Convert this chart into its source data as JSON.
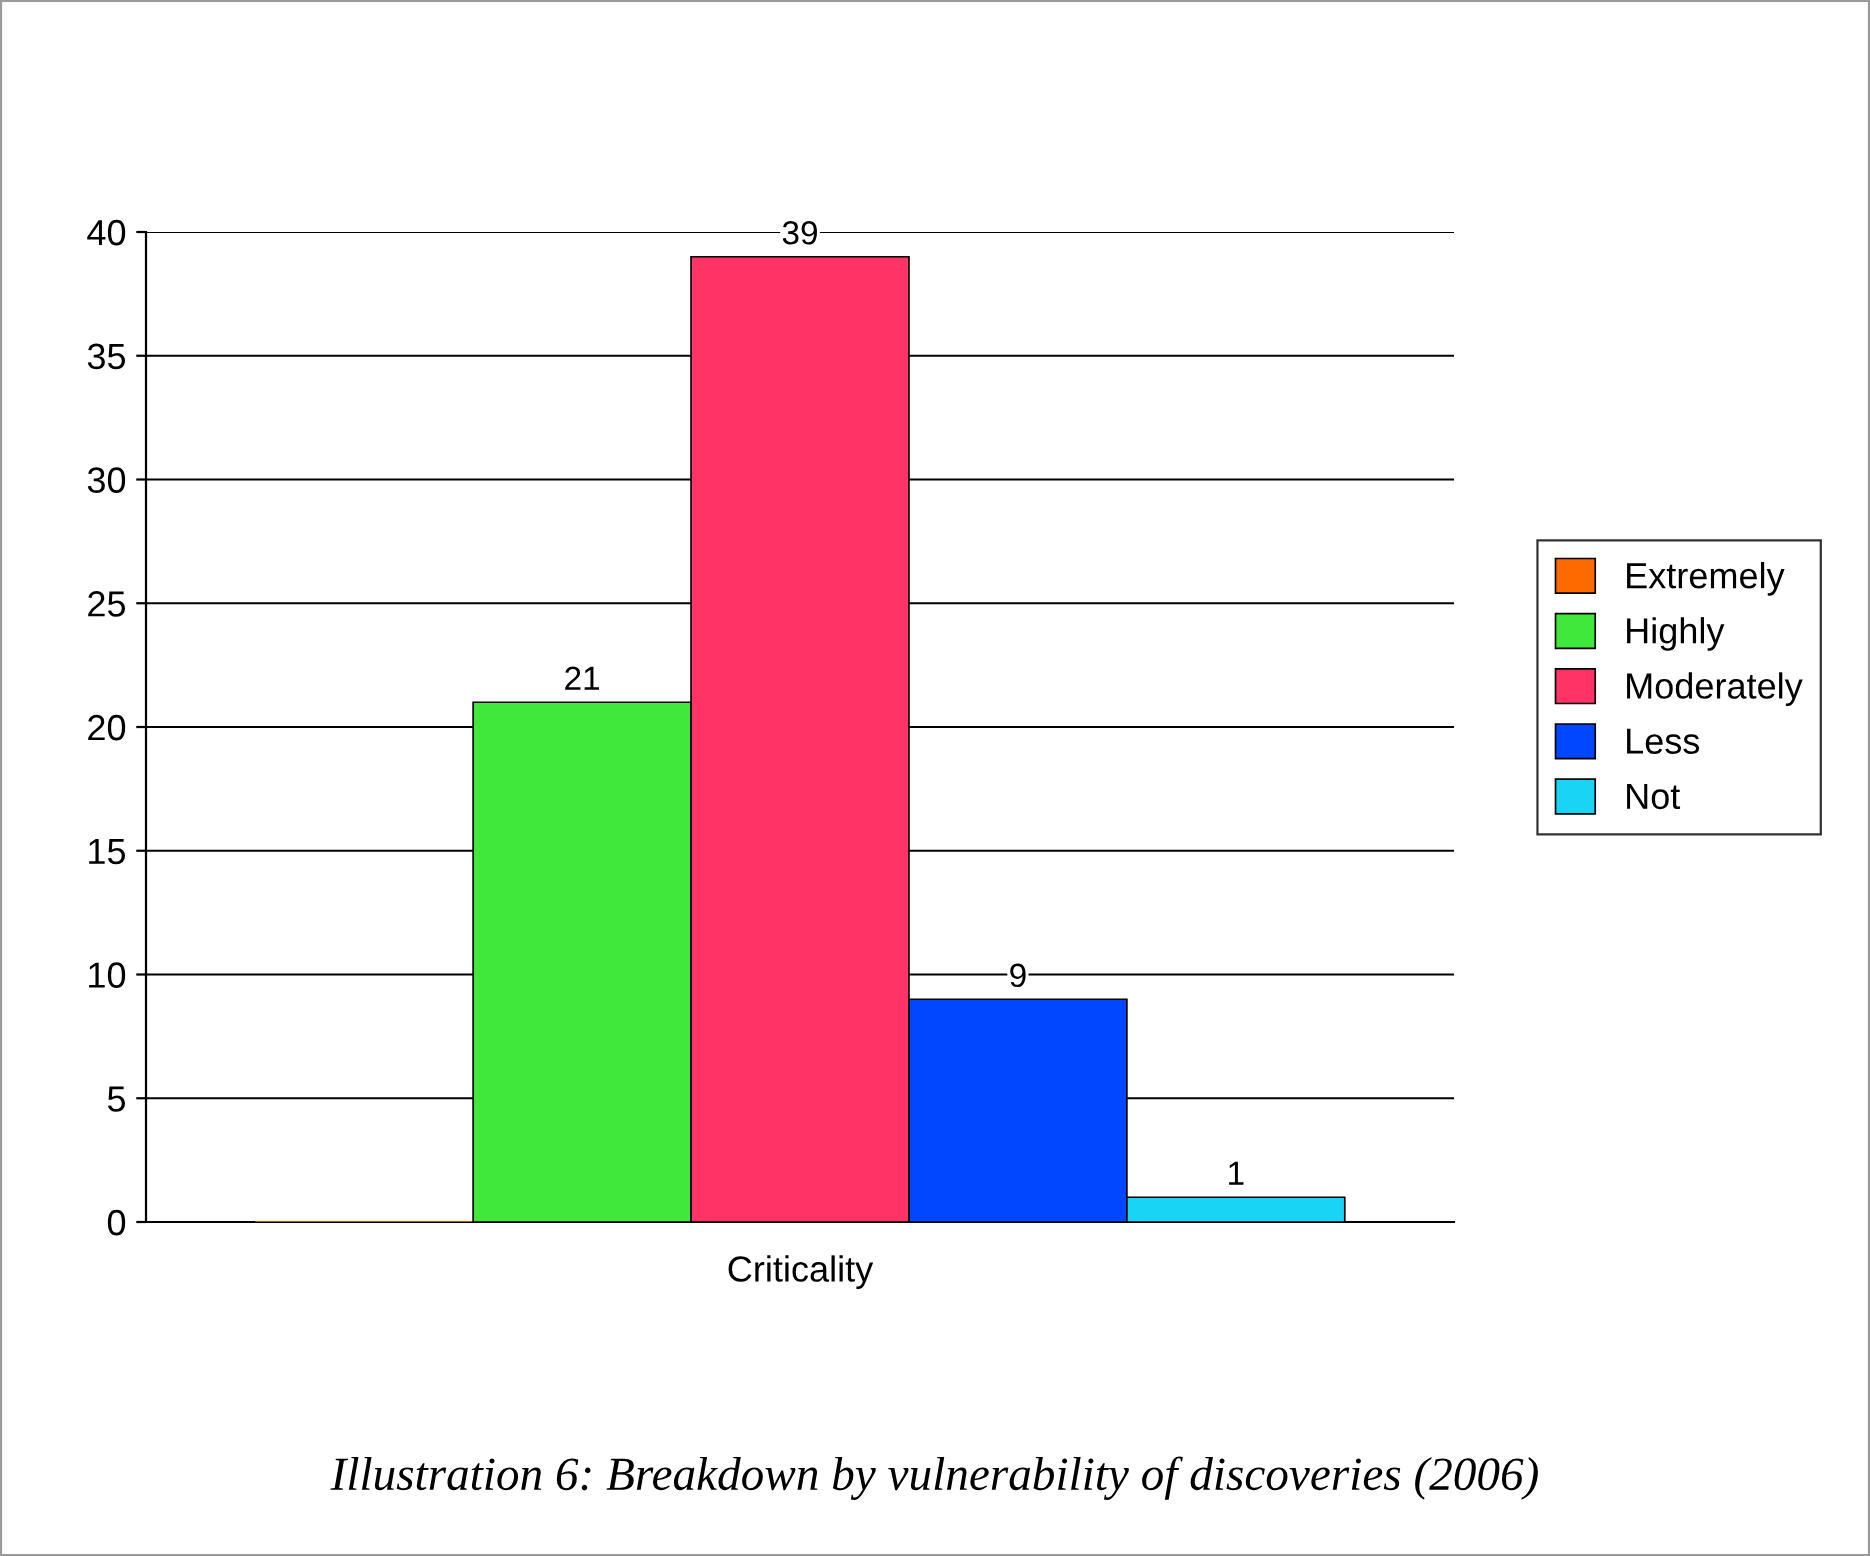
{
  "chart_data": {
    "type": "bar",
    "categories": [
      "Criticality"
    ],
    "series": [
      {
        "name": "Extremely",
        "color": "#ff6a00",
        "values": [
          0
        ],
        "value_labels": [
          null
        ]
      },
      {
        "name": "Highly",
        "color": "#3fe83a",
        "values": [
          21
        ],
        "value_labels": [
          "21"
        ]
      },
      {
        "name": "Moderately",
        "color": "#ff3366",
        "values": [
          39
        ],
        "value_labels": [
          "39"
        ]
      },
      {
        "name": "Less",
        "color": "#0047ff",
        "values": [
          9
        ],
        "value_labels": [
          "9"
        ]
      },
      {
        "name": "Not",
        "color": "#19d4f5",
        "values": [
          1
        ],
        "value_labels": [
          "1"
        ]
      }
    ],
    "ylim": [
      0,
      40
    ],
    "yticks": [
      0,
      5,
      10,
      15,
      20,
      25,
      30,
      35,
      40
    ],
    "grid": "y",
    "legend": "right",
    "annotations": [
      "Illustration 6: Breakdown by vulnerability of discoveries (2006)"
    ]
  }
}
